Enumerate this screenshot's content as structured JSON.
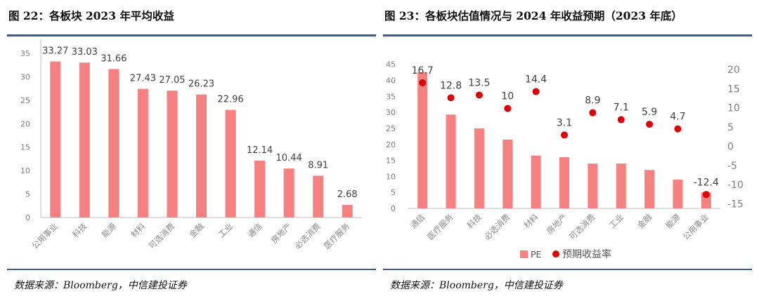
{
  "charts": [
    {
      "title": "图 22：各板块 2023 年平均收益",
      "source": "数据来源：Bloomberg，中信建投证券"
    },
    {
      "title": "图 23：各板块估值情况与 2024 年收益预期（2023 年底）",
      "source": "数据来源：Bloomberg，中信建投证券"
    }
  ],
  "colors": {
    "bar": "#f78080",
    "dot": "#e00000",
    "rule": "#3a5f8f",
    "axis": "#bfbfbf"
  },
  "chart_data": [
    {
      "type": "bar",
      "title": "图 22：各板块 2023 年平均收益",
      "categories": [
        "公用事业",
        "科技",
        "能源",
        "材料",
        "可选消费",
        "金融",
        "工业",
        "通信",
        "房地产",
        "必选消费",
        "医疗服务"
      ],
      "values": [
        33.27,
        33.03,
        31.66,
        27.43,
        27.05,
        26.23,
        22.96,
        12.14,
        10.44,
        8.91,
        2.68
      ],
      "data_labels": [
        "33.27",
        "33.03",
        "31.66",
        "27.43",
        "27.05",
        "26.23",
        "22.96",
        "12.14",
        "10.44",
        "8.91",
        "2.68"
      ],
      "yticks": [
        0,
        5,
        10,
        15,
        20,
        25,
        30,
        35
      ],
      "ylim": [
        0,
        38
      ],
      "xlabel": "",
      "ylabel": ""
    },
    {
      "type": "bar+scatter",
      "title": "图 23：各板块估值情况与 2024 年收益预期（2023 年底）",
      "categories": [
        "通信",
        "医疗服务",
        "科技",
        "必选消费",
        "材料",
        "房地产",
        "可选消费",
        "工业",
        "金融",
        "能源",
        "公用事业"
      ],
      "series": [
        {
          "name": "PE",
          "axis": "left",
          "kind": "bar",
          "values": [
            42.5,
            29.3,
            25.0,
            21.5,
            16.5,
            16.0,
            14.0,
            14.0,
            12.0,
            9.0,
            5.0
          ]
        },
        {
          "name": "预期收益率",
          "axis": "right",
          "kind": "scatter",
          "values": [
            16.7,
            12.8,
            13.5,
            10,
            14.4,
            3.1,
            8.9,
            7.1,
            5.9,
            4.7,
            -12.4
          ]
        }
      ],
      "data_labels": [
        "16.7",
        "12.8",
        "13.5",
        "10",
        "14.4",
        "3.1",
        "8.9",
        "7.1",
        "5.9",
        "4.7",
        "-12.4"
      ],
      "left_yticks": [
        0,
        5,
        10,
        15,
        20,
        25,
        30,
        35,
        40,
        45
      ],
      "left_ylim": [
        0,
        48
      ],
      "right_yticks": [
        20,
        15,
        10,
        5,
        0,
        -5,
        -10,
        -15
      ],
      "right_ylim": [
        -16,
        24
      ],
      "legend": [
        "PE",
        "预期收益率"
      ],
      "legend_position": "bottom"
    }
  ]
}
